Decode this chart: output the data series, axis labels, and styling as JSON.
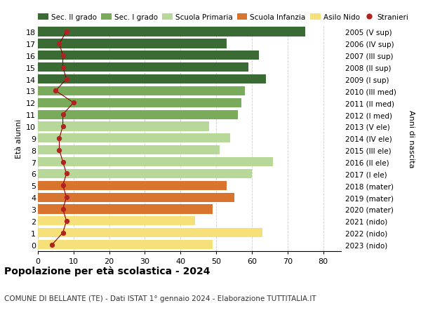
{
  "ages": [
    18,
    17,
    16,
    15,
    14,
    13,
    12,
    11,
    10,
    9,
    8,
    7,
    6,
    5,
    4,
    3,
    2,
    1,
    0
  ],
  "right_labels": [
    "2005 (V sup)",
    "2006 (IV sup)",
    "2007 (III sup)",
    "2008 (II sup)",
    "2009 (I sup)",
    "2010 (III med)",
    "2011 (II med)",
    "2012 (I med)",
    "2013 (V ele)",
    "2014 (IV ele)",
    "2015 (III ele)",
    "2016 (II ele)",
    "2017 (I ele)",
    "2018 (mater)",
    "2019 (mater)",
    "2020 (mater)",
    "2021 (nido)",
    "2022 (nido)",
    "2023 (nido)"
  ],
  "bar_values": [
    75,
    53,
    62,
    59,
    64,
    58,
    57,
    56,
    48,
    54,
    51,
    66,
    60,
    53,
    55,
    49,
    44,
    63,
    49
  ],
  "stranieri": [
    8,
    6,
    7,
    7,
    8,
    5,
    10,
    7,
    7,
    6,
    6,
    7,
    8,
    7,
    8,
    7,
    8,
    7,
    4
  ],
  "bar_colors": [
    "#3a6b35",
    "#3a6b35",
    "#3a6b35",
    "#3a6b35",
    "#3a6b35",
    "#7aab5a",
    "#7aab5a",
    "#7aab5a",
    "#b8d89a",
    "#b8d89a",
    "#b8d89a",
    "#b8d89a",
    "#b8d89a",
    "#d9742e",
    "#d9742e",
    "#d9742e",
    "#f5e07a",
    "#f5e07a",
    "#f5e07a"
  ],
  "stranieri_color": "#b22222",
  "stranieri_line_color": "#8b0000",
  "xlim": [
    0,
    85
  ],
  "xticks": [
    0,
    10,
    20,
    30,
    40,
    50,
    60,
    70,
    80
  ],
  "ylabel_left": "Età alunni",
  "ylabel_right": "Anni di nascita",
  "title": "Popolazione per età scolastica - 2024",
  "subtitle": "COMUNE DI BELLANTE (TE) - Dati ISTAT 1° gennaio 2024 - Elaborazione TUTTITALIA.IT",
  "legend_items": [
    {
      "label": "Sec. II grado",
      "color": "#3a6b35",
      "type": "patch"
    },
    {
      "label": "Sec. I grado",
      "color": "#7aab5a",
      "type": "patch"
    },
    {
      "label": "Scuola Primaria",
      "color": "#b8d89a",
      "type": "patch"
    },
    {
      "label": "Scuola Infanzia",
      "color": "#d9742e",
      "type": "patch"
    },
    {
      "label": "Asilo Nido",
      "color": "#f5e07a",
      "type": "patch"
    },
    {
      "label": "Stranieri",
      "color": "#b22222",
      "type": "marker"
    }
  ],
  "bar_height": 0.78,
  "background_color": "#ffffff",
  "grid_color": "#cccccc"
}
